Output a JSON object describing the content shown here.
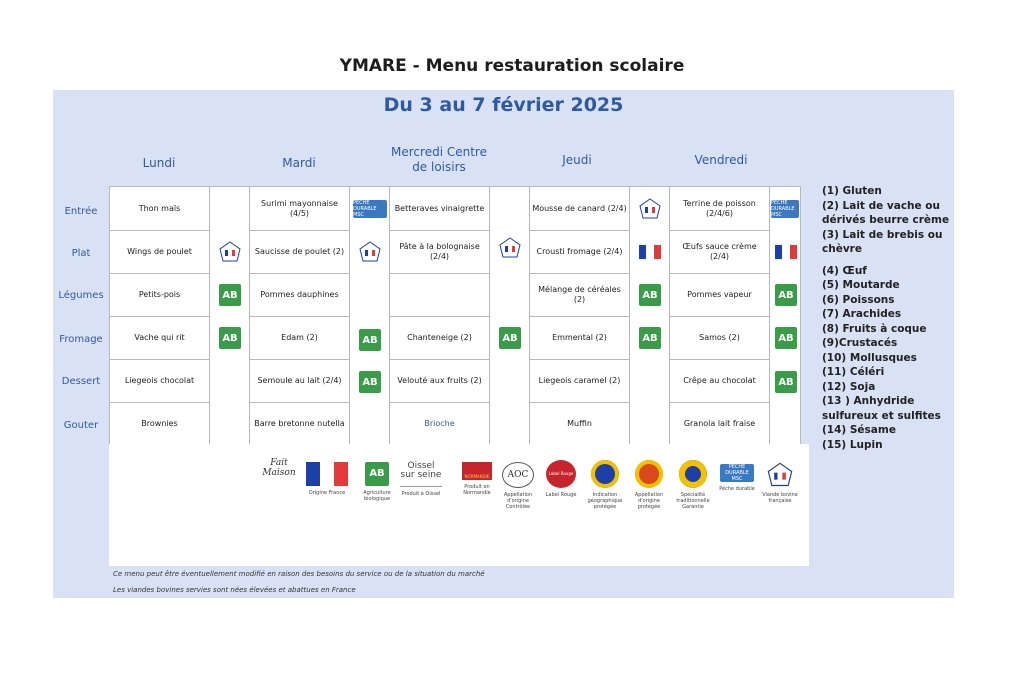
{
  "title": "YMARE - Menu restauration scolaire",
  "subtitle": "Du 3 au 7 février 2025",
  "days": [
    "Lundi",
    "Mardi",
    "Mercredi Centre de loisirs",
    "Jeudi",
    "Vendredi"
  ],
  "rows": [
    "Entrée",
    "Plat",
    "Légumes",
    "Fromage",
    "Dessert",
    "Gouter"
  ],
  "menu": {
    "lundi": [
      "Thon maïs",
      "Wings de poulet",
      "Petits-pois",
      "Vache qui rit",
      "Liegeois chocolat",
      "Brownies"
    ],
    "mardi": [
      "Surimi mayonnaise (4/5)",
      "Saucisse de poulet (2)",
      "Pommes dauphines",
      "Edam (2)",
      "Semoule au lait (2/4)",
      "Barre bretonne nutella"
    ],
    "mercredi": [
      "Betteraves vinaigrette",
      "Pâte à la bolognaise (2/4)",
      "",
      "Chanteneige (2)",
      "Velouté aux fruits (2)",
      "Brioche"
    ],
    "jeudi": [
      "Mousse de canard (2/4)",
      "Crousti fromage (2/4)",
      "Mélange de céréales (2)",
      "Emmental (2)",
      "Liegeois caramel (2)",
      "Muffin"
    ],
    "vendredi": [
      "Terrine de poisson (2/4/6)",
      "Œufs sauce crème (2/4)",
      "Pommes vapeur",
      "Samos (2)",
      "Crêpe au chocolat",
      "Granola lait fraise"
    ]
  },
  "labels": {
    "ab": "AB",
    "msc": "PÊCHE DURABLE MSC"
  },
  "logos": [
    {
      "name": "fait-maison",
      "text": "Fait Maison",
      "caption": ""
    },
    {
      "name": "origine-france",
      "text": "",
      "caption": "Origine France"
    },
    {
      "name": "agriculture-biologique",
      "text": "AB",
      "caption": "Agriculture biologique"
    },
    {
      "name": "produit-oissel",
      "text": "Oissel sur seine",
      "caption": "Produit à Oissel"
    },
    {
      "name": "produit-normandie",
      "text": "NORMANDIE",
      "caption": "Produit en Normandie"
    },
    {
      "name": "aoc",
      "text": "AOC",
      "caption": "Appellation d'origine Contrôlée"
    },
    {
      "name": "label-rouge",
      "text": "Label Rouge",
      "caption": "Label Rouge"
    },
    {
      "name": "igp",
      "text": "",
      "caption": "Indication géographique protégée"
    },
    {
      "name": "aop",
      "text": "",
      "caption": "Appellation d'origine protégée"
    },
    {
      "name": "stg",
      "text": "",
      "caption": "Spécialité traditionnelle Garantie"
    },
    {
      "name": "peche-durable",
      "text": "",
      "caption": "Pêche durable"
    },
    {
      "name": "viande-bovine",
      "text": "",
      "caption": "Viande bovine française"
    }
  ],
  "notes": [
    "Ce menu peut être éventuellement modifié en raison des besoins du service ou de la situation du marché",
    "Les viandes bovines servies sont nées élevées et abattues en France"
  ],
  "allergens": [
    "(1) Gluten",
    "(2) Lait de vache ou dérivés beurre crème",
    "(3) Lait de brebis ou chèvre",
    "(4) Œuf",
    "(5) Moutarde",
    "(6) Poissons",
    "(7) Arachides",
    "(8) Fruits à coque",
    "(9)Crustacés",
    "(10) Mollusques",
    "(11) Céléri",
    "(12) Soja",
    "(13 ) Anhydride sulfureux et sulfites",
    "(14) Sésame",
    "(15) Lupin"
  ],
  "colors": {
    "accent": "#2f5aa0",
    "panel": "#d9e1f5",
    "ab_green": "#3a9b48",
    "france_blue": "#1f3fa8",
    "france_red": "#e03a3a"
  }
}
